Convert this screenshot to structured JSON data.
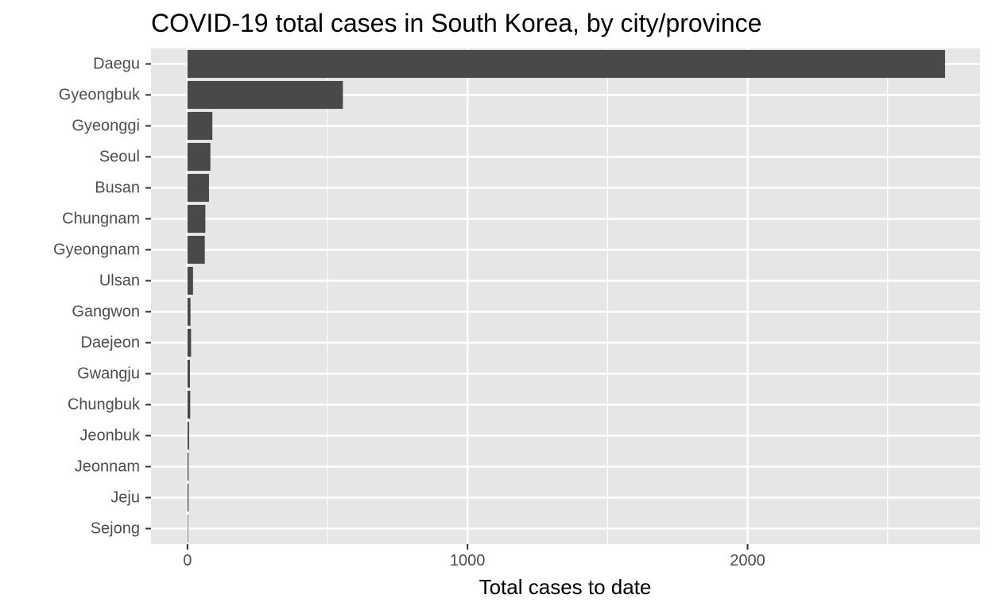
{
  "chart_data": {
    "type": "bar",
    "orientation": "horizontal",
    "title": "COVID-19 total cases in South Korea, by city/province",
    "xlabel": "Total cases to date",
    "ylabel": "",
    "categories": [
      "Daegu",
      "Gyeongbuk",
      "Gyeonggi",
      "Seoul",
      "Busan",
      "Chungnam",
      "Gyeongnam",
      "Ulsan",
      "Gangwon",
      "Daejeon",
      "Gwangju",
      "Chungbuk",
      "Jeonbuk",
      "Jeonnam",
      "Jeju",
      "Sejong"
    ],
    "values": [
      2705,
      555,
      89,
      82,
      77,
      64,
      62,
      20,
      11,
      13,
      9,
      10,
      6,
      4,
      4,
      1
    ],
    "xlim": [
      -130,
      2830
    ],
    "xticks": [
      0,
      1000,
      2000
    ],
    "xtick_labels": [
      "0",
      "1000",
      "2000"
    ],
    "grid": true,
    "colors": {
      "bar": "#494949",
      "panel_background": "#e6e6e6",
      "grid": "#ffffff",
      "tick_text": "#4d4d4d",
      "tick_mark": "#333333"
    }
  }
}
